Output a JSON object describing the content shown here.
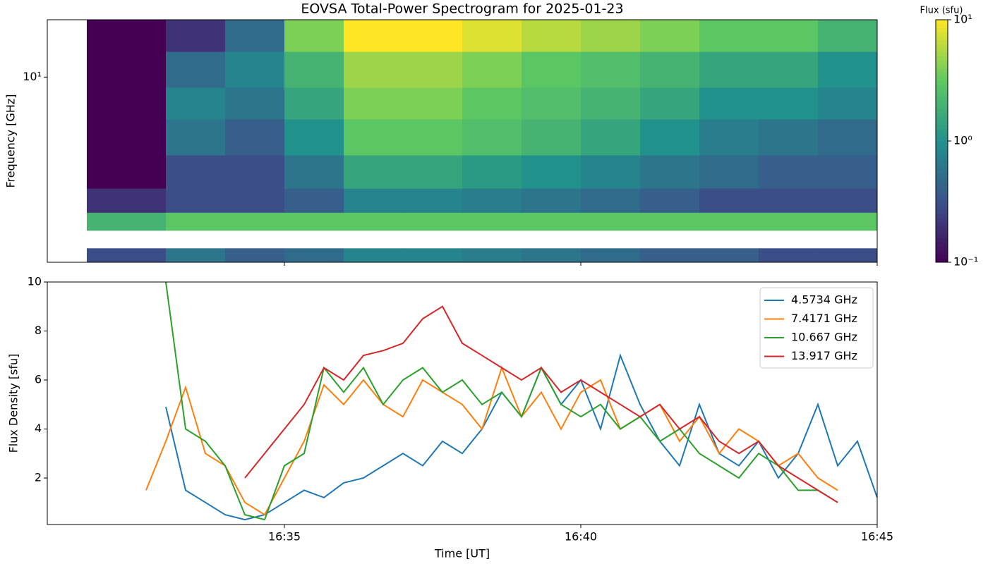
{
  "chart_data": [
    {
      "type": "heatmap",
      "title": "EOVSA Total-Power Spectrogram for 2025-01-23",
      "ylabel": "Frequency [GHz]",
      "ylog": true,
      "ylim": [
        1.5,
        18
      ],
      "yticks": [
        {
          "value": 10,
          "label": "10¹"
        }
      ],
      "xlim": [
        "16:31",
        "16:45"
      ],
      "xticks": [
        "16:35",
        "16:40",
        "16:45"
      ],
      "time_edges": [
        "16:31:40",
        "16:33",
        "16:34",
        "16:35",
        "16:36",
        "16:37",
        "16:38",
        "16:39",
        "16:40",
        "16:41",
        "16:42",
        "16:43",
        "16:44",
        "16:45"
      ],
      "freq_edges": [
        1.5,
        1.73,
        2.08,
        2.5,
        3.2,
        4.5,
        6.5,
        9,
        13,
        18
      ],
      "values": [
        [
          0.3,
          0.6,
          0.4,
          0.5,
          0.8,
          0.8,
          0.7,
          0.6,
          0.5,
          0.4,
          0.4,
          0.3,
          0.3
        ],
        [
          null,
          null,
          null,
          null,
          null,
          null,
          null,
          null,
          null,
          null,
          null,
          null,
          null
        ],
        [
          2,
          3,
          3,
          3,
          3,
          3,
          3,
          3,
          3,
          3,
          3,
          3,
          3
        ],
        [
          0.2,
          0.3,
          0.3,
          0.4,
          0.8,
          0.8,
          0.7,
          0.6,
          0.5,
          0.4,
          0.3,
          0.3,
          0.3
        ],
        [
          0.1,
          0.3,
          0.3,
          0.6,
          1.5,
          1.5,
          1.2,
          1,
          0.8,
          0.6,
          0.5,
          0.4,
          0.4
        ],
        [
          0.1,
          0.6,
          0.4,
          1,
          3,
          3,
          2.5,
          2,
          1.5,
          1,
          0.7,
          0.6,
          0.5
        ],
        [
          0.1,
          0.8,
          0.6,
          1.5,
          4,
          4,
          3,
          2.5,
          2,
          1.5,
          1,
          1,
          0.8
        ],
        [
          0.1,
          0.5,
          0.8,
          2,
          5,
          5,
          4,
          3,
          2.5,
          2,
          1.5,
          1.5,
          1
        ],
        [
          0.1,
          0.2,
          0.5,
          4,
          10,
          10,
          8,
          6,
          5,
          4,
          3,
          3,
          2
        ]
      ],
      "colorbar": {
        "label": "Flux (sfu)",
        "log": true,
        "lim": [
          0.1,
          10
        ],
        "ticks": [
          {
            "value": 0.1,
            "label": "10⁻¹"
          },
          {
            "value": 1,
            "label": "10⁰"
          },
          {
            "value": 10,
            "label": "10¹"
          }
        ],
        "colormap": [
          "#440154",
          "#3b528b",
          "#21918c",
          "#5ec962",
          "#fde725"
        ]
      }
    },
    {
      "type": "line",
      "xlabel": "Time [UT]",
      "ylabel": "Flux Density [sfu]",
      "xlim": [
        "16:31",
        "16:45"
      ],
      "xticks": [
        "16:35",
        "16:40",
        "16:45"
      ],
      "ylim": [
        0.1,
        10
      ],
      "yticks": [
        2,
        4,
        6,
        8,
        10
      ],
      "legend": "upper right",
      "x": [
        "16:31:00",
        "16:31:20",
        "16:31:40",
        "16:32:00",
        "16:32:20",
        "16:32:40",
        "16:33:00",
        "16:33:20",
        "16:33:40",
        "16:34:00",
        "16:34:20",
        "16:34:40",
        "16:35:00",
        "16:35:20",
        "16:35:40",
        "16:36:00",
        "16:36:20",
        "16:36:40",
        "16:37:00",
        "16:37:20",
        "16:37:40",
        "16:38:00",
        "16:38:20",
        "16:38:40",
        "16:39:00",
        "16:39:20",
        "16:39:40",
        "16:40:00",
        "16:40:20",
        "16:40:40",
        "16:41:00",
        "16:41:20",
        "16:41:40",
        "16:42:00",
        "16:42:20",
        "16:42:40",
        "16:43:00",
        "16:43:20",
        "16:43:40",
        "16:44:00",
        "16:44:20",
        "16:44:40",
        "16:45:00"
      ],
      "series": [
        {
          "name": "4.5734 GHz",
          "color": "#1f77b4",
          "values": [
            null,
            null,
            null,
            null,
            null,
            null,
            4.9,
            1.5,
            1.0,
            0.5,
            0.3,
            0.5,
            1.0,
            1.5,
            1.2,
            1.8,
            2.0,
            2.5,
            3.0,
            2.5,
            3.5,
            3.0,
            4.0,
            5.5,
            4.5,
            6.5,
            5.0,
            6.0,
            4.0,
            7.0,
            5.0,
            3.5,
            2.5,
            5.0,
            3.0,
            2.5,
            3.5,
            2.0,
            3.0,
            5.0,
            2.5,
            3.5,
            1.2
          ]
        },
        {
          "name": "7.4171 GHz",
          "color": "#ff7f0e",
          "values": [
            null,
            null,
            null,
            null,
            null,
            1.5,
            3.5,
            5.7,
            3.0,
            2.5,
            1.0,
            0.5,
            2.0,
            3.5,
            5.8,
            5.0,
            6.0,
            5.0,
            4.5,
            6.0,
            5.5,
            5.0,
            4.0,
            6.5,
            4.5,
            5.5,
            4.0,
            5.5,
            6.0,
            4.0,
            4.5,
            5.0,
            3.5,
            4.5,
            3.0,
            4.0,
            3.5,
            2.5,
            3.0,
            2.0,
            1.5,
            null,
            null
          ]
        },
        {
          "name": "10.667 GHz",
          "color": "#2ca02c",
          "values": [
            null,
            null,
            null,
            null,
            null,
            null,
            10.0,
            4.0,
            3.5,
            2.5,
            0.5,
            0.3,
            2.5,
            3.0,
            6.5,
            5.5,
            6.5,
            5.0,
            6.0,
            6.5,
            5.5,
            6.0,
            5.0,
            5.5,
            4.5,
            6.5,
            5.0,
            4.5,
            5.0,
            4.0,
            4.5,
            3.5,
            4.0,
            3.0,
            2.5,
            2.0,
            3.0,
            2.5,
            1.5,
            1.5,
            1.0,
            null,
            null
          ]
        },
        {
          "name": "13.917 GHz",
          "color": "#d62728",
          "values": [
            null,
            null,
            null,
            null,
            null,
            null,
            null,
            null,
            null,
            null,
            2.0,
            3.0,
            4.0,
            5.0,
            6.5,
            6.0,
            7.0,
            7.2,
            7.5,
            8.5,
            9.0,
            7.5,
            7.0,
            6.5,
            6.0,
            6.5,
            5.5,
            6.0,
            5.5,
            5.0,
            4.5,
            5.0,
            4.0,
            4.5,
            3.5,
            3.0,
            3.5,
            2.5,
            2.0,
            1.5,
            1.0,
            null,
            null
          ]
        }
      ]
    }
  ]
}
